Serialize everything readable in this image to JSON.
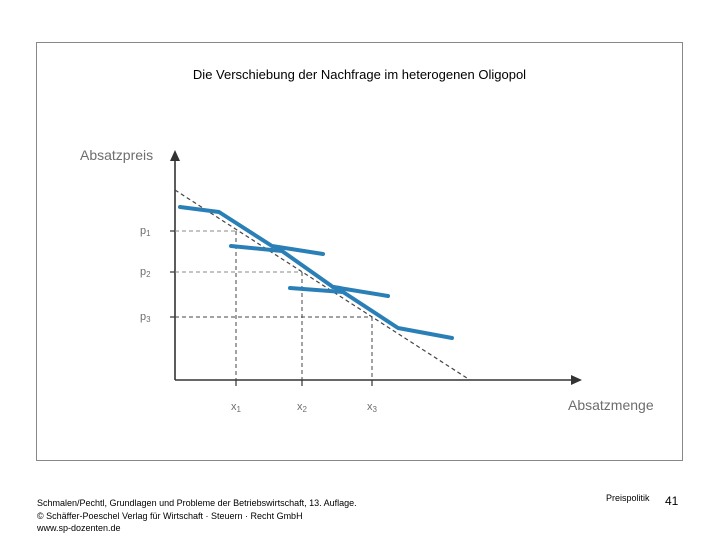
{
  "slide": {
    "title": "Die Verschiebung der Nachfrage im heterogenen Oligopol",
    "section": "Preispolitik",
    "page_number": "41"
  },
  "diagram": {
    "y_axis_label": "Absatzpreis",
    "x_axis_label": "Absatzmenge",
    "price_levels": [
      "p1",
      "p2",
      "p3"
    ],
    "quantity_levels": [
      "x1",
      "x2",
      "x3"
    ],
    "colors": {
      "curve": "#2a7fb7",
      "axis": "#333333",
      "dashed": "#555555"
    }
  },
  "footer": {
    "line1": "Schmalen/Pechtl, Grundlagen und Probleme der Betriebswirtschaft, 13. Auflage.",
    "line2": "© Schäffer-Poeschel Verlag für Wirtschaft · Steuern · Recht GmbH",
    "line3": "www.sp-dozenten.de"
  }
}
